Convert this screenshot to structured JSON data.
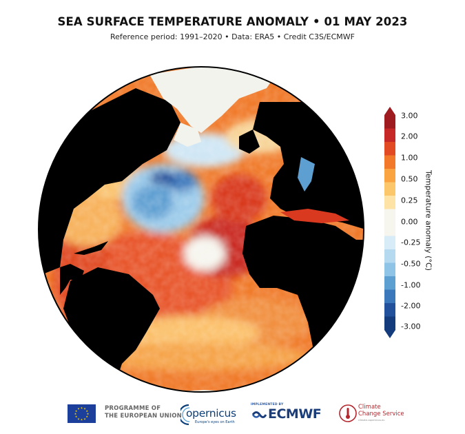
{
  "header": {
    "title": "SEA SURFACE TEMPERATURE ANOMALY • 01 MAY 2023",
    "subtitle": "Reference period: 1991–2020 • Data: ERA5 • Credit C3S/ECMWF"
  },
  "colorbar": {
    "label": "Temperature anomaly (°C)",
    "ticks": [
      "3.00",
      "2.00",
      "1.00",
      "0.50",
      "0.25",
      "0.00",
      "-0.25",
      "-0.50",
      "-1.00",
      "-2.00",
      "-3.00"
    ],
    "colors": {
      "warm": [
        "#9e1b20",
        "#c62828",
        "#e24a24",
        "#f2782a",
        "#f9a341",
        "#fcc66a",
        "#fde3a6"
      ],
      "neutral": "#f6f5ee",
      "cool": [
        "#d7ecf6",
        "#b5daf0",
        "#8fc4e7",
        "#5e9fd2",
        "#3b77bb",
        "#23509a",
        "#143c7c"
      ],
      "land": "#000000",
      "ice": "#f3f3ee"
    }
  },
  "footer": {
    "eu_text_line1": "PROGRAMME OF",
    "eu_text_line2": "THE EUROPEAN UNION",
    "copernicus": "opernicus",
    "copernicus_tagline": "Europe's eyes on Earth",
    "ecmwf_implemented": "IMPLEMENTED BY",
    "ecmwf": "ECMWF",
    "c3s_line1": "Climate",
    "c3s_line2": "Change Service",
    "c3s_sub": "climate.copernicus.eu"
  }
}
